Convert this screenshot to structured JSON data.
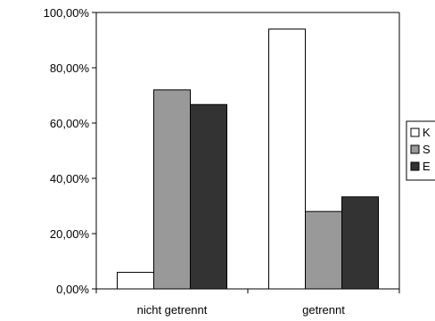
{
  "chart_data": {
    "type": "bar",
    "categories": [
      "nicht getrennt",
      "getrennt"
    ],
    "series": [
      {
        "name": "K",
        "values": [
          6,
          94
        ],
        "color": "#ffffff"
      },
      {
        "name": "S",
        "values": [
          72,
          28
        ],
        "color": "#999999"
      },
      {
        "name": "E",
        "values": [
          66.7,
          33.3
        ],
        "color": "#333333"
      }
    ],
    "ylim": [
      0,
      100
    ],
    "yticks": [
      0,
      20,
      40,
      60,
      80,
      100
    ],
    "ytick_labels": [
      "0,00%",
      "20,00%",
      "40,00%",
      "60,00%",
      "80,00%",
      "100,00%"
    ],
    "title": "",
    "xlabel": "",
    "ylabel": "",
    "legend": {
      "position": "right",
      "entries": [
        "K",
        "S",
        "E"
      ]
    },
    "grid": false
  }
}
